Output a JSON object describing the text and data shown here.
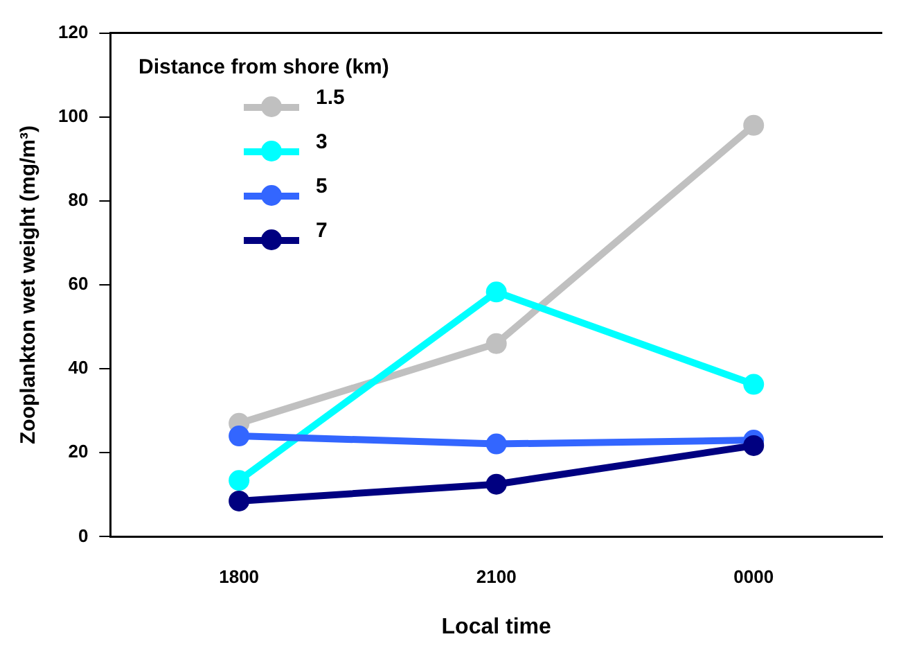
{
  "chart_data": {
    "type": "line",
    "xlabel": "Local time",
    "ylabel": "Zooplankton wet weight (mg/m³)",
    "legend_title": "Distance from shore (km)",
    "legend": "top left",
    "marker": "circle",
    "grid": false,
    "categories": [
      "1800",
      "2100",
      "0000"
    ],
    "ylim": [
      0,
      120
    ],
    "yticks": [
      0,
      20,
      40,
      60,
      80,
      100,
      120
    ],
    "series": [
      {
        "name": "1.5",
        "color": "#c0c0c0",
        "values": [
          27,
          46,
          98
        ]
      },
      {
        "name": "3",
        "color": "#00ffff",
        "values": [
          13.4,
          58.3,
          36.3
        ]
      },
      {
        "name": "5",
        "color": "#3366ff",
        "values": [
          24,
          22.1,
          23
        ]
      },
      {
        "name": "7",
        "color": "#000080",
        "values": [
          8.5,
          12.5,
          21.7
        ]
      }
    ]
  }
}
